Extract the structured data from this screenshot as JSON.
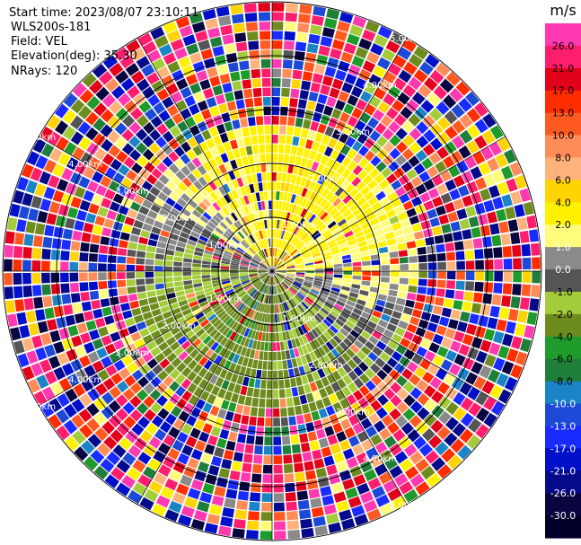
{
  "header": {
    "start_time": "Start time: 2023/08/07 23:10:11",
    "instrument": "WLS200s-181",
    "field": "Field: VEL",
    "elevation": "Elevation(deg): 35.30",
    "nrays": "NRays: 120"
  },
  "chart_data": {
    "type": "heatmap",
    "projection": "polar-ppi",
    "field": "VEL",
    "rays": 120,
    "range_rings_km": [
      1.0,
      2.0,
      3.0,
      4.0,
      5.0
    ],
    "range_ring_labels": [
      "1.00km",
      "2.00km",
      "3.00km",
      "4.00km",
      "5.00km"
    ],
    "spoke_angles_deg": [
      0,
      30,
      60,
      90,
      120,
      150
    ],
    "colorbar": {
      "unit": "m/s",
      "vmin": -30.0,
      "vmax": 30.0,
      "tick_labels": [
        "26.0",
        "21.0",
        "17.0",
        "13.0",
        "10.0",
        "8.0",
        "6.0",
        "4.0",
        "2.0",
        "1.0",
        "0.0",
        "-1.0",
        "-2.0",
        "-4.0",
        "-6.0",
        "-8.0",
        "-10.0",
        "-13.0",
        "-17.0",
        "-21.0",
        "-26.0",
        "-30.0"
      ],
      "colors": [
        "#ff3ab0",
        "#ff1d6e",
        "#e2001a",
        "#ff2d00",
        "#ff5a22",
        "#ff8d5a",
        "#ffb27a",
        "#ffd400",
        "#fff100",
        "#fffc7c",
        "#8a8a8a",
        "#555555",
        "#a4cc3a",
        "#6e8c1e",
        "#1e9b2a",
        "#1f7f38",
        "#1a84c6",
        "#1c49d8",
        "#1a2bff",
        "#0010c8",
        "#050a8a",
        "#080540",
        "#000028"
      ]
    }
  }
}
